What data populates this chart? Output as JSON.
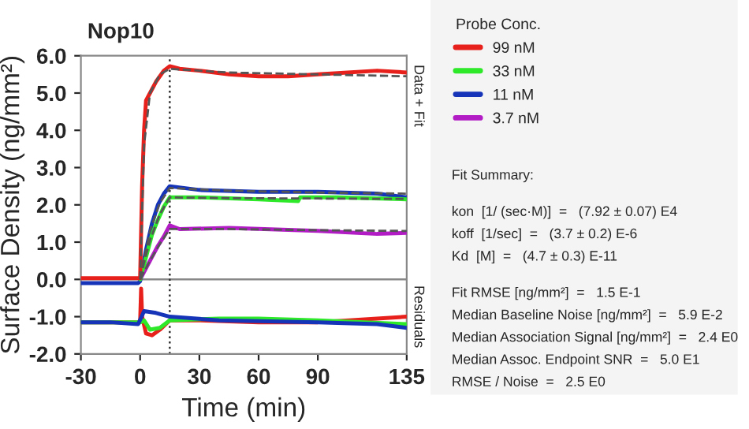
{
  "chart_data": {
    "type": "line",
    "title": "Nop10",
    "xlabel": "Time (min)",
    "ylabel": "Surface Density (ng/mm²)",
    "legend_title": "Probe Conc.",
    "legend": "right",
    "xlim": [
      -30,
      135
    ],
    "xticks": [
      -30,
      0,
      30,
      60,
      90,
      135
    ],
    "ylim": [
      -2,
      6
    ],
    "yticks": [
      {
        "value": -2,
        "label": "-2.0"
      },
      {
        "value": -1,
        "label": "-1.0"
      },
      {
        "value": 0,
        "label": "0.0"
      },
      {
        "value": 1,
        "label": "1.0"
      },
      {
        "value": 2,
        "label": "2.0"
      },
      {
        "value": 3,
        "label": "3.0"
      },
      {
        "value": 4,
        "label": "4.0"
      },
      {
        "value": 5,
        "label": "5.0"
      },
      {
        "value": 6,
        "label": "6.0"
      }
    ],
    "grid": false,
    "marker": "none",
    "line_style": "solid",
    "ref_lines": [
      {
        "axis": "y",
        "value": 0,
        "color": "#888888",
        "line_style": "solid"
      },
      {
        "axis": "x",
        "value": 15,
        "color": "#333333",
        "line_style": "dotted"
      }
    ],
    "series": [
      {
        "name": "99 nM",
        "color": "#e8201c",
        "x": [
          -30,
          -20,
          -10,
          -1,
          0,
          1,
          2,
          3,
          5,
          8,
          12,
          15,
          20,
          30,
          45,
          60,
          75,
          90,
          105,
          120,
          135
        ],
        "values": [
          0.03,
          0.03,
          0.03,
          0.03,
          0.03,
          2.5,
          4.0,
          4.8,
          5.0,
          5.3,
          5.6,
          5.72,
          5.65,
          5.6,
          5.5,
          5.45,
          5.45,
          5.5,
          5.55,
          5.6,
          5.55
        ]
      },
      {
        "name": "33 nM",
        "color": "#2ee82a",
        "x": [
          0,
          3,
          6,
          9,
          12,
          15,
          30,
          60,
          80,
          81,
          100,
          135
        ],
        "values": [
          0.0,
          0.6,
          1.2,
          1.6,
          1.95,
          2.2,
          2.2,
          2.15,
          2.1,
          2.2,
          2.2,
          2.15
        ]
      },
      {
        "name": "11 nM",
        "color": "#1634b8",
        "x": [
          -30,
          -20,
          -10,
          -1,
          0,
          3,
          6,
          9,
          12,
          15,
          30,
          60,
          90,
          120,
          135
        ],
        "values": [
          -0.1,
          -0.1,
          -0.1,
          -0.1,
          -0.05,
          0.8,
          1.5,
          2.0,
          2.3,
          2.5,
          2.4,
          2.35,
          2.35,
          2.3,
          2.2
        ]
      },
      {
        "name": "3.7 nM",
        "color": "#b21cc4",
        "x": [
          0,
          3,
          6,
          9,
          12,
          15,
          20,
          45,
          90,
          120,
          135
        ],
        "values": [
          0.0,
          0.3,
          0.6,
          0.9,
          1.15,
          1.45,
          1.35,
          1.38,
          1.3,
          1.22,
          1.25
        ]
      },
      {
        "color": "#555555",
        "line_style": "dashed",
        "x": [
          0,
          2,
          5,
          10,
          15,
          45,
          90,
          135
        ],
        "values": [
          0.0,
          3.6,
          5.0,
          5.5,
          5.65,
          5.55,
          5.5,
          5.45
        ]
      },
      {
        "color": "#555555",
        "line_style": "dashed",
        "x": [
          0,
          2,
          5,
          10,
          15,
          45,
          90,
          135
        ],
        "values": [
          0.0,
          0.45,
          1.05,
          1.75,
          2.2,
          2.18,
          2.17,
          2.16
        ]
      },
      {
        "color": "#555555",
        "line_style": "dashed",
        "x": [
          0,
          2,
          5,
          10,
          15,
          45,
          90,
          135
        ],
        "values": [
          0.0,
          0.55,
          1.3,
          2.05,
          2.45,
          2.38,
          2.33,
          2.3
        ]
      },
      {
        "color": "#555555",
        "line_style": "dashed",
        "x": [
          0,
          2,
          5,
          10,
          15,
          45,
          90,
          135
        ],
        "values": [
          0.0,
          0.2,
          0.5,
          0.95,
          1.35,
          1.35,
          1.32,
          1.3
        ]
      },
      {
        "color": "#1634b8",
        "x": [
          -30,
          -15,
          -1,
          2,
          8,
          15,
          40,
          90,
          120,
          135
        ],
        "values": [
          -1.15,
          -1.15,
          -1.2,
          -0.85,
          -0.9,
          -1.0,
          -1.1,
          -1.15,
          -1.2,
          -1.3
        ]
      },
      {
        "color": "#2ee82a",
        "x": [
          -30,
          -15,
          0,
          2,
          5,
          10,
          15,
          40,
          60,
          90,
          135
        ],
        "values": [
          -1.15,
          -1.15,
          -1.15,
          -1.1,
          -1.35,
          -1.3,
          -1.1,
          -1.05,
          -1.05,
          -1.1,
          -1.2
        ]
      },
      {
        "color": "#e8201c",
        "x": [
          -30,
          -15,
          0,
          0.5,
          1,
          3,
          6,
          10,
          15,
          30,
          60,
          90,
          120,
          135
        ],
        "values": [
          -1.15,
          -1.15,
          -1.15,
          -0.25,
          -1.0,
          -1.45,
          -1.5,
          -1.35,
          -1.1,
          -1.1,
          -1.15,
          -1.15,
          -1.05,
          -1.0
        ]
      }
    ],
    "annotations": [
      "Data + Fit",
      "Residuals",
      "Fit Summary:",
      "kon  [1/ (sec·M)]  =   (7.92 ± 0.07) E4",
      "koff  [1/sec]  =   (3.7 ± 0.2) E-6",
      "Kd  [M]  =   (4.7 ± 0.3) E-11",
      "Fit RMSE [ng/mm²]  =   1.5 E-1",
      "Median Baseline Noise [ng/mm²]  =   5.9 E-2",
      "Median Association Signal [ng/mm²]  =   2.4 E0",
      "Median Assoc. Endpoint SNR  =   5.0 E1",
      "RMSE / Noise  =   2.5 E0"
    ]
  }
}
